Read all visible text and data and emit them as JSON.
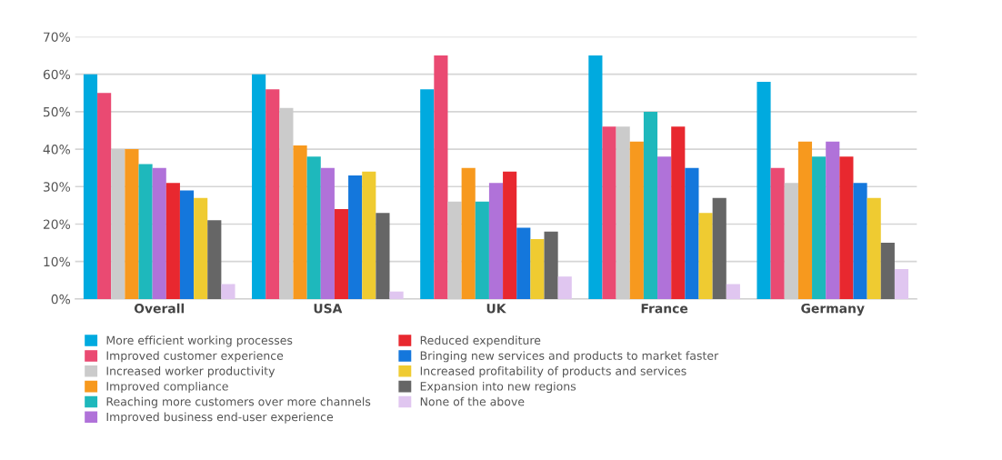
{
  "chart_data": {
    "type": "bar",
    "categories": [
      "Overall",
      "USA",
      "UK",
      "France",
      "Germany"
    ],
    "series": [
      {
        "name": "More efficient working processes",
        "color": "#00aadf",
        "values": [
          60,
          60,
          56,
          65,
          58
        ]
      },
      {
        "name": "Improved customer experience",
        "color": "#ea4a72",
        "values": [
          55,
          56,
          65,
          46,
          35
        ]
      },
      {
        "name": "Increased worker productivity",
        "color": "#cbcbcb",
        "values": [
          40,
          51,
          26,
          46,
          31
        ]
      },
      {
        "name": "Improved compliance",
        "color": "#f7991e",
        "values": [
          40,
          41,
          35,
          42,
          42
        ]
      },
      {
        "name": "Reaching more customers over more channels",
        "color": "#1eb8bc",
        "values": [
          36,
          38,
          26,
          50,
          38
        ]
      },
      {
        "name": "Improved business end-user experience",
        "color": "#b072d9",
        "values": [
          35,
          35,
          31,
          38,
          42
        ]
      },
      {
        "name": "Reduced expenditure",
        "color": "#e8282f",
        "values": [
          31,
          24,
          34,
          46,
          38
        ]
      },
      {
        "name": "Bringing new services and products to market faster",
        "color": "#1477dc",
        "values": [
          29,
          33,
          19,
          35,
          31
        ]
      },
      {
        "name": "Increased profitability of products and services",
        "color": "#efcb31",
        "values": [
          27,
          34,
          16,
          23,
          27
        ]
      },
      {
        "name": "Expansion into new regions",
        "color": "#666666",
        "values": [
          21,
          23,
          18,
          27,
          15
        ]
      },
      {
        "name": "None of the above",
        "color": "#e0c6f0",
        "values": [
          4,
          2,
          6,
          4,
          8
        ]
      }
    ],
    "ylim": [
      0,
      70
    ],
    "yticks": [
      {
        "value": 0,
        "label": "0%"
      },
      {
        "value": 10,
        "label": "10%"
      },
      {
        "value": 20,
        "label": "20%"
      },
      {
        "value": 30,
        "label": "30%"
      },
      {
        "value": 40,
        "label": "40%"
      },
      {
        "value": 50,
        "label": "50%"
      },
      {
        "value": 60,
        "label": "60%"
      },
      {
        "value": 70,
        "label": "70%"
      }
    ],
    "grid": "y",
    "legend": "bottom left"
  }
}
